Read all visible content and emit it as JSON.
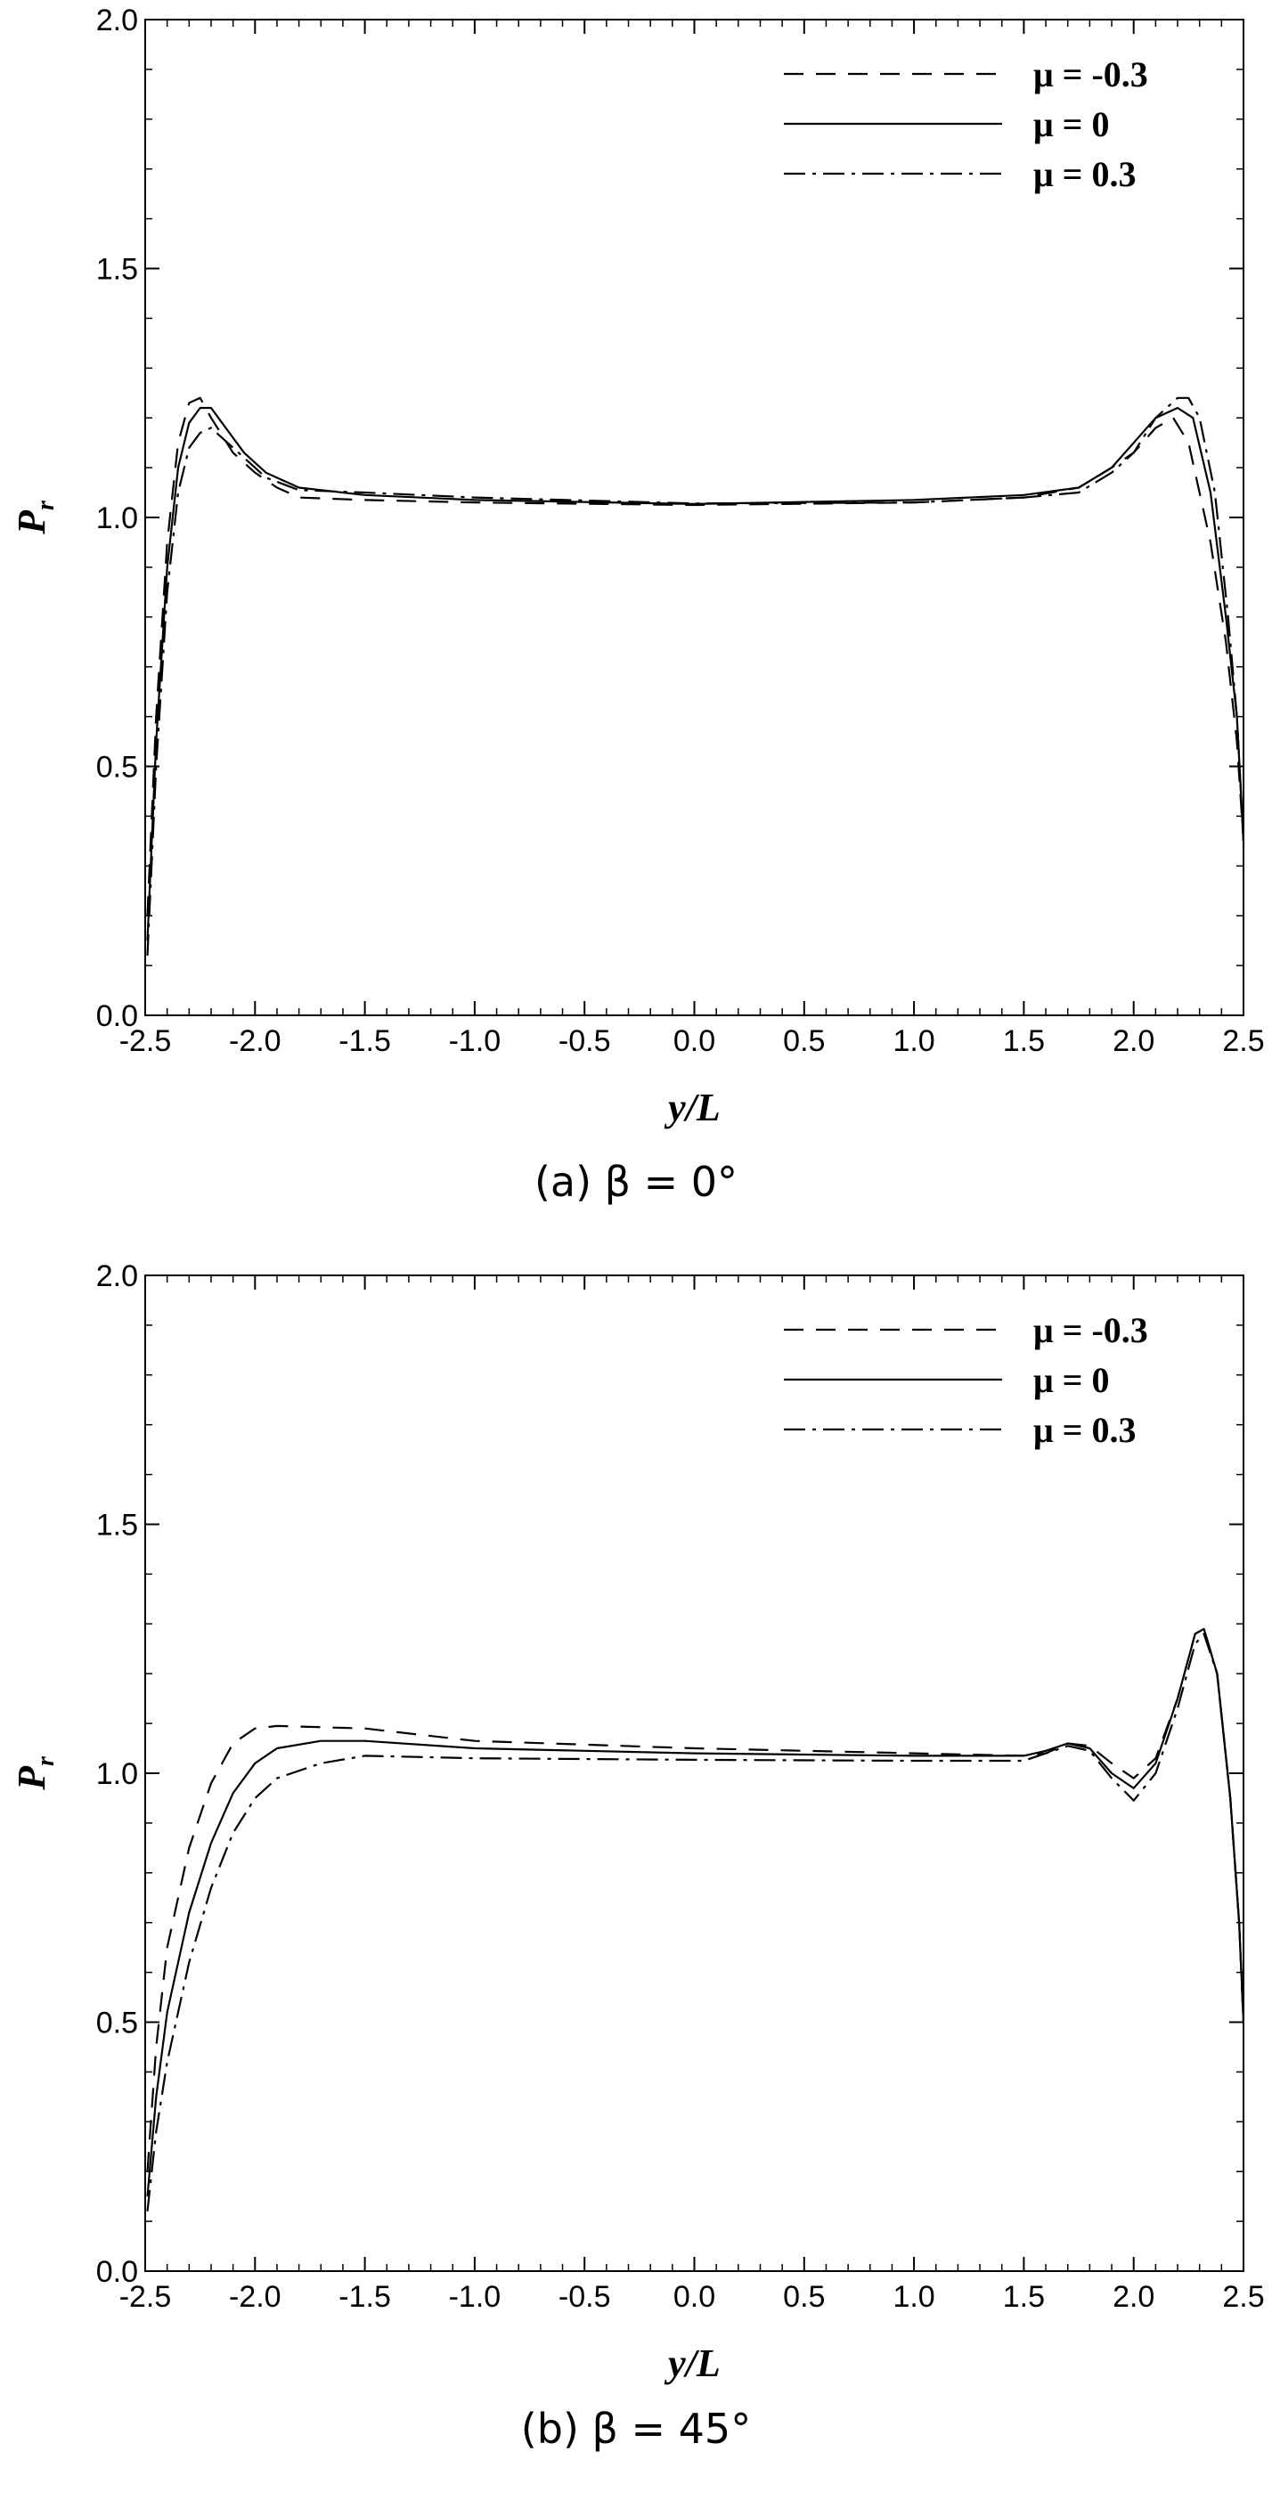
{
  "chart_data": [
    {
      "type": "line",
      "caption": "(a)  β = 0°",
      "xlabel": "y/L",
      "ylabel": "P",
      "ylabel_sub": "r",
      "xlim": [
        -2.5,
        2.5
      ],
      "ylim": [
        0.0,
        2.0
      ],
      "xticks": [
        "-2.5",
        "-2.0",
        "-1.5",
        "-1.0",
        "-0.5",
        "0.0",
        "0.5",
        "1.0",
        "1.5",
        "2.0",
        "2.5"
      ],
      "yticks": [
        "0.0",
        "0.5",
        "1.0",
        "1.5",
        "2.0"
      ],
      "legend_position": "top-right",
      "series": [
        {
          "name": "μ = -0.3",
          "style": "dashed",
          "points": [
            [
              -2.49,
              0.2
            ],
            [
              -2.45,
              0.6
            ],
            [
              -2.4,
              0.95
            ],
            [
              -2.35,
              1.15
            ],
            [
              -2.3,
              1.23
            ],
            [
              -2.25,
              1.24
            ],
            [
              -2.2,
              1.2
            ],
            [
              -2.1,
              1.13
            ],
            [
              -2.0,
              1.09
            ],
            [
              -1.9,
              1.06
            ],
            [
              -1.8,
              1.04
            ],
            [
              -1.5,
              1.035
            ],
            [
              -1.0,
              1.03
            ],
            [
              0.0,
              1.025
            ],
            [
              1.0,
              1.03
            ],
            [
              1.5,
              1.04
            ],
            [
              1.75,
              1.06
            ],
            [
              1.9,
              1.1
            ],
            [
              2.0,
              1.13
            ],
            [
              2.1,
              1.18
            ],
            [
              2.18,
              1.2
            ],
            [
              2.25,
              1.15
            ],
            [
              2.35,
              0.95
            ],
            [
              2.42,
              0.75
            ],
            [
              2.47,
              0.55
            ],
            [
              2.5,
              0.35
            ]
          ]
        },
        {
          "name": "μ = 0",
          "style": "solid",
          "points": [
            [
              -2.49,
              0.15
            ],
            [
              -2.45,
              0.55
            ],
            [
              -2.4,
              0.9
            ],
            [
              -2.35,
              1.1
            ],
            [
              -2.3,
              1.19
            ],
            [
              -2.25,
              1.22
            ],
            [
              -2.2,
              1.22
            ],
            [
              -2.15,
              1.19
            ],
            [
              -2.05,
              1.13
            ],
            [
              -1.95,
              1.09
            ],
            [
              -1.8,
              1.06
            ],
            [
              -1.5,
              1.045
            ],
            [
              -1.0,
              1.035
            ],
            [
              0.0,
              1.027
            ],
            [
              1.0,
              1.035
            ],
            [
              1.5,
              1.045
            ],
            [
              1.75,
              1.06
            ],
            [
              1.9,
              1.1
            ],
            [
              2.0,
              1.15
            ],
            [
              2.1,
              1.2
            ],
            [
              2.2,
              1.22
            ],
            [
              2.27,
              1.2
            ],
            [
              2.35,
              1.05
            ],
            [
              2.42,
              0.8
            ],
            [
              2.47,
              0.6
            ],
            [
              2.5,
              0.35
            ]
          ]
        },
        {
          "name": "μ = 0.3",
          "style": "dashdot",
          "points": [
            [
              -2.49,
              0.12
            ],
            [
              -2.45,
              0.5
            ],
            [
              -2.4,
              0.85
            ],
            [
              -2.35,
              1.05
            ],
            [
              -2.3,
              1.14
            ],
            [
              -2.25,
              1.17
            ],
            [
              -2.2,
              1.18
            ],
            [
              -2.15,
              1.16
            ],
            [
              -2.05,
              1.12
            ],
            [
              -1.95,
              1.08
            ],
            [
              -1.8,
              1.055
            ],
            [
              -1.5,
              1.05
            ],
            [
              -1.0,
              1.04
            ],
            [
              0.0,
              1.028
            ],
            [
              1.0,
              1.03
            ],
            [
              1.5,
              1.04
            ],
            [
              1.75,
              1.05
            ],
            [
              1.9,
              1.09
            ],
            [
              2.0,
              1.13
            ],
            [
              2.1,
              1.2
            ],
            [
              2.2,
              1.24
            ],
            [
              2.25,
              1.24
            ],
            [
              2.3,
              1.2
            ],
            [
              2.37,
              1.05
            ],
            [
              2.43,
              0.8
            ],
            [
              2.47,
              0.6
            ],
            [
              2.5,
              0.35
            ]
          ]
        }
      ]
    },
    {
      "type": "line",
      "caption": "(b)  β = 45°",
      "xlabel": "y/L",
      "ylabel": "P",
      "ylabel_sub": "r",
      "xlim": [
        -2.5,
        2.5
      ],
      "ylim": [
        0.0,
        2.0
      ],
      "xticks": [
        "-2.5",
        "-2.0",
        "-1.5",
        "-1.0",
        "-0.5",
        "0.0",
        "0.5",
        "1.0",
        "1.5",
        "2.0",
        "2.5"
      ],
      "yticks": [
        "0.0",
        "0.5",
        "1.0",
        "1.5",
        "2.0"
      ],
      "legend_position": "top-right",
      "series": [
        {
          "name": "μ = -0.3",
          "style": "dashed",
          "points": [
            [
              -2.49,
              0.2
            ],
            [
              -2.45,
              0.45
            ],
            [
              -2.4,
              0.65
            ],
            [
              -2.3,
              0.85
            ],
            [
              -2.2,
              0.98
            ],
            [
              -2.1,
              1.06
            ],
            [
              -2.0,
              1.09
            ],
            [
              -1.9,
              1.095
            ],
            [
              -1.5,
              1.09
            ],
            [
              -1.0,
              1.065
            ],
            [
              0.0,
              1.05
            ],
            [
              1.0,
              1.04
            ],
            [
              1.5,
              1.035
            ],
            [
              1.6,
              1.04
            ],
            [
              1.7,
              1.06
            ],
            [
              1.8,
              1.055
            ],
            [
              1.9,
              1.02
            ],
            [
              2.0,
              0.99
            ],
            [
              2.1,
              1.03
            ],
            [
              2.2,
              1.15
            ],
            [
              2.28,
              1.28
            ],
            [
              2.32,
              1.29
            ],
            [
              2.38,
              1.2
            ],
            [
              2.44,
              0.95
            ],
            [
              2.48,
              0.7
            ],
            [
              2.5,
              0.5
            ]
          ]
        },
        {
          "name": "μ = 0",
          "style": "solid",
          "points": [
            [
              -2.49,
              0.15
            ],
            [
              -2.45,
              0.35
            ],
            [
              -2.4,
              0.52
            ],
            [
              -2.3,
              0.72
            ],
            [
              -2.2,
              0.86
            ],
            [
              -2.1,
              0.96
            ],
            [
              -2.0,
              1.02
            ],
            [
              -1.9,
              1.05
            ],
            [
              -1.7,
              1.065
            ],
            [
              -1.5,
              1.065
            ],
            [
              -1.0,
              1.05
            ],
            [
              0.0,
              1.04
            ],
            [
              1.0,
              1.035
            ],
            [
              1.5,
              1.035
            ],
            [
              1.6,
              1.045
            ],
            [
              1.7,
              1.06
            ],
            [
              1.8,
              1.05
            ],
            [
              1.9,
              1.0
            ],
            [
              2.0,
              0.97
            ],
            [
              2.1,
              1.02
            ],
            [
              2.2,
              1.15
            ],
            [
              2.28,
              1.28
            ],
            [
              2.32,
              1.29
            ],
            [
              2.38,
              1.2
            ],
            [
              2.44,
              0.95
            ],
            [
              2.48,
              0.7
            ],
            [
              2.5,
              0.5
            ]
          ]
        },
        {
          "name": "μ = 0.3",
          "style": "dashdot",
          "points": [
            [
              -2.49,
              0.12
            ],
            [
              -2.45,
              0.28
            ],
            [
              -2.4,
              0.42
            ],
            [
              -2.3,
              0.62
            ],
            [
              -2.2,
              0.77
            ],
            [
              -2.1,
              0.88
            ],
            [
              -2.0,
              0.95
            ],
            [
              -1.9,
              0.99
            ],
            [
              -1.7,
              1.02
            ],
            [
              -1.5,
              1.035
            ],
            [
              -1.0,
              1.03
            ],
            [
              0.0,
              1.027
            ],
            [
              1.0,
              1.025
            ],
            [
              1.5,
              1.025
            ],
            [
              1.6,
              1.04
            ],
            [
              1.7,
              1.055
            ],
            [
              1.8,
              1.045
            ],
            [
              1.9,
              0.99
            ],
            [
              2.0,
              0.945
            ],
            [
              2.1,
              1.0
            ],
            [
              2.2,
              1.13
            ],
            [
              2.28,
              1.26
            ],
            [
              2.32,
              1.28
            ],
            [
              2.38,
              1.2
            ],
            [
              2.44,
              0.95
            ],
            [
              2.48,
              0.7
            ],
            [
              2.5,
              0.5
            ]
          ]
        }
      ]
    }
  ]
}
